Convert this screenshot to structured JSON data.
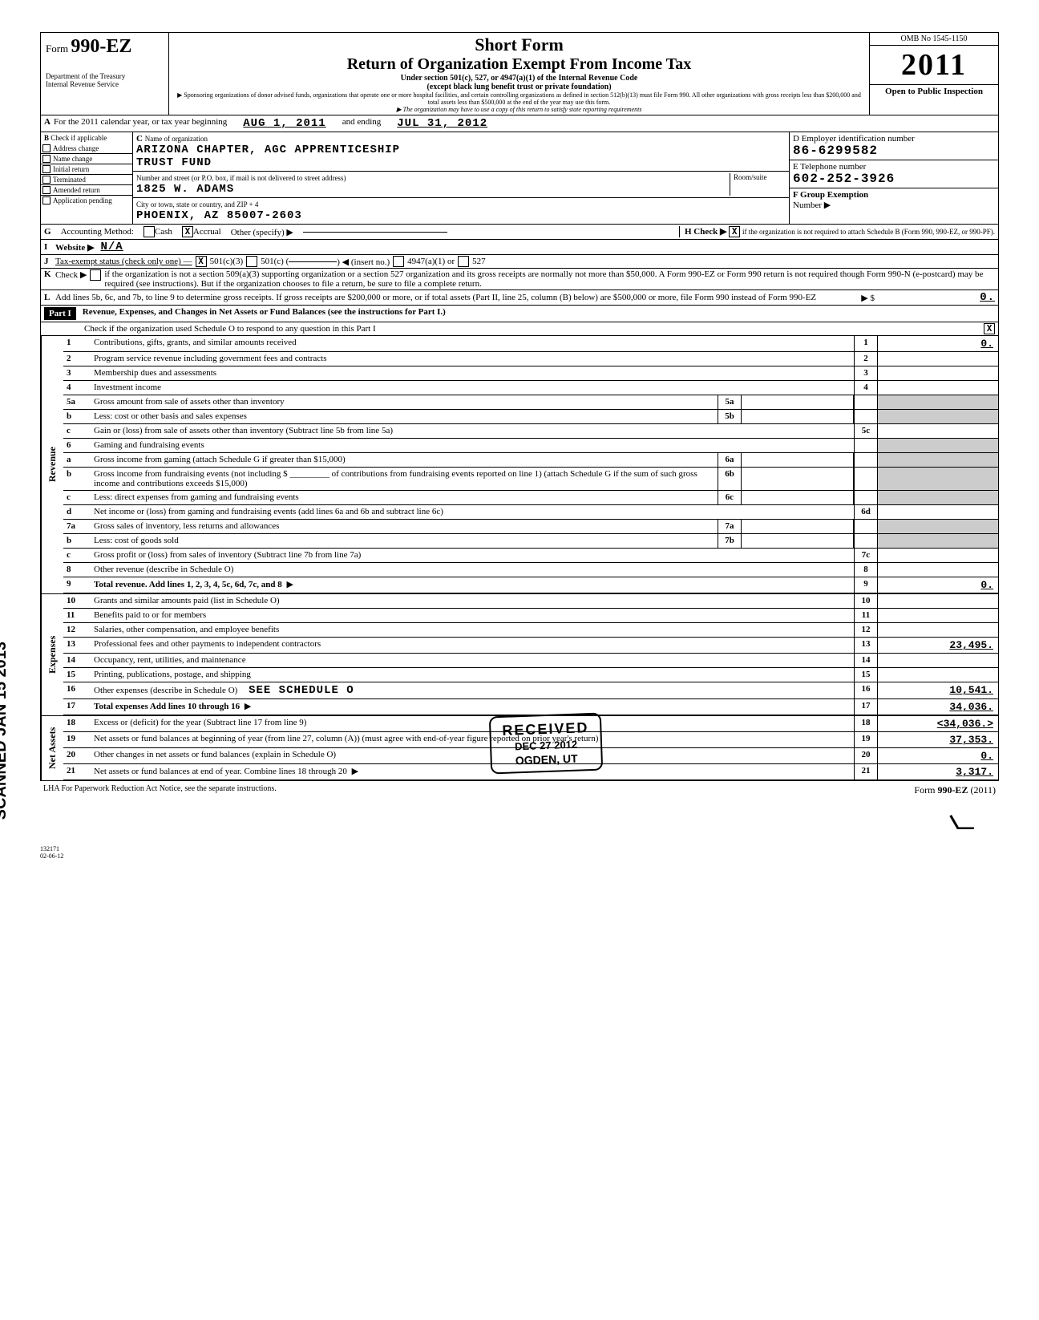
{
  "header": {
    "form_prefix": "Form",
    "form_no": "990-EZ",
    "dept1": "Department of the Treasury",
    "dept2": "Internal Revenue Service",
    "short": "Short Form",
    "title": "Return of Organization Exempt From Income Tax",
    "sub1": "Under section 501(c), 527, or 4947(a)(1) of the Internal Revenue Code",
    "sub2": "(except black lung benefit trust or private foundation)",
    "sub3": "▶ Sponsoring organizations of donor advised funds, organizations that operate one or more hospital facilities, and certain controlling organizations as defined in section 512(b)(13) must file Form 990. All other organizations with gross receipts less than $200,000 and total assets less than $500,000 at the end of the year may use this form.",
    "sub4": "▶ The organization may have to use a copy of this return to satisfy state reporting requirements",
    "omb": "OMB No  1545-1150",
    "year": "2011",
    "open": "Open to Public Inspection"
  },
  "rowA": {
    "label": "A",
    "text": "For the 2011 calendar year, or tax year beginning",
    "begin": "AUG 1, 2011",
    "and": "and ending",
    "end": "JUL 31, 2012"
  },
  "sectionB": {
    "b_label": "B",
    "b_text": "Check if applicable",
    "checks": [
      "Address change",
      "Name change",
      "Initial return",
      "Terminated",
      "Amended return",
      "Application pending"
    ],
    "c_label": "C",
    "c_text": "Name of organization",
    "org1": "ARIZONA CHAPTER, AGC APPRENTICESHIP",
    "org2": "TRUST FUND",
    "addr_hint": "Number and street (or P.O. box, if mail is not delivered to street address)",
    "room": "Room/suite",
    "addr": "1825 W. ADAMS",
    "city_hint": "City or town, state or country, and ZIP + 4",
    "city": "PHOENIX, AZ  85007-2603",
    "d_label": "D Employer identification number",
    "ein": "86-6299582",
    "e_label": "E  Telephone number",
    "phone": "602-252-3926",
    "f_label": "F  Group Exemption",
    "f_text": "Number ▶"
  },
  "rowG": {
    "g": "G",
    "acct": "Accounting Method:",
    "cash": "Cash",
    "accrual": "Accrual",
    "other": "Other (specify) ▶",
    "h": "H Check ▶",
    "h_text": "if the organization is not required to attach Schedule B (Form 990, 990-EZ, or 990-PF).",
    "h_x": "X"
  },
  "rowI": {
    "i": "I",
    "label": "Website ▶",
    "val": "N/A"
  },
  "rowJ": {
    "j": "J",
    "label": "Tax-exempt status (check only one) —",
    "x": "X",
    "c3": "501(c)(3)",
    "c": "501(c) (",
    "ins": ") ◀ (insert no.)",
    "a1": "4947(a)(1) or",
    "s527": "527"
  },
  "rowK": {
    "k": "K",
    "label": "Check ▶",
    "text": "if the organization is not a section 509(a)(3) supporting organization or a section 527 organization and its gross receipts are normally not more than $50,000. A Form 990-EZ or Form 990 return is not required though Form 990-N (e-postcard) may be required (see instructions). But if the organization chooses to file a return, be sure to file a complete return."
  },
  "rowL": {
    "l": "L",
    "text": "Add lines 5b, 6c, and 7b, to line 9 to determine gross receipts. If gross receipts are $200,000 or more, or if total assets (Part II, line 25, column (B) below) are $500,000 or more, file Form 990 instead of Form 990-EZ",
    "arrow": "▶  $",
    "val": "0."
  },
  "part1": {
    "hdr": "Part I",
    "title": "Revenue, Expenses, and Changes in Net Assets or Fund Balances (see the instructions for Part I.)",
    "check_line": "Check if the organization used Schedule O to respond to any question in this Part I",
    "check_x": "X"
  },
  "lines": [
    {
      "n": "1",
      "d": "Contributions, gifts, grants, and similar amounts received",
      "rn": "1",
      "rv": "0."
    },
    {
      "n": "2",
      "d": "Program service revenue including government fees and contracts",
      "rn": "2",
      "rv": ""
    },
    {
      "n": "3",
      "d": "Membership dues and assessments",
      "rn": "3",
      "rv": ""
    },
    {
      "n": "4",
      "d": "Investment income",
      "rn": "4",
      "rv": ""
    },
    {
      "n": "5a",
      "d": "Gross amount from sale of assets other than inventory",
      "mn": "5a",
      "mv": "",
      "shaded": true
    },
    {
      "n": "b",
      "d": "Less: cost or other basis and sales expenses",
      "mn": "5b",
      "mv": "",
      "shaded": true
    },
    {
      "n": "c",
      "d": "Gain or (loss) from sale of assets other than inventory (Subtract line 5b from line 5a)",
      "rn": "5c",
      "rv": ""
    },
    {
      "n": "6",
      "d": "Gaming and fundraising events",
      "shaded_full": true
    },
    {
      "n": "a",
      "d": "Gross income from gaming (attach Schedule G if greater than $15,000)",
      "mn": "6a",
      "mv": "",
      "shaded": true
    },
    {
      "n": "b",
      "d": "Gross income from fundraising events (not including $ _________ of contributions from fundraising events reported on line 1) (attach Schedule G if the sum of such gross income and contributions exceeds $15,000)",
      "mn": "6b",
      "mv": "",
      "shaded": true
    },
    {
      "n": "c",
      "d": "Less: direct expenses from gaming and fundraising events",
      "mn": "6c",
      "mv": "",
      "shaded": true
    },
    {
      "n": "d",
      "d": "Net income or (loss) from gaming and fundraising events (add lines 6a and 6b and subtract line 6c)",
      "rn": "6d",
      "rv": ""
    },
    {
      "n": "7a",
      "d": "Gross sales of inventory, less returns and allowances",
      "mn": "7a",
      "mv": "",
      "shaded": true
    },
    {
      "n": "b",
      "d": "Less: cost of goods sold",
      "mn": "7b",
      "mv": "",
      "shaded": true
    },
    {
      "n": "c",
      "d": "Gross profit or (loss) from sales of inventory (Subtract line 7b from line 7a)",
      "rn": "7c",
      "rv": ""
    },
    {
      "n": "8",
      "d": "Other revenue (describe in Schedule O)",
      "rn": "8",
      "rv": ""
    },
    {
      "n": "9",
      "d": "Total revenue. Add lines 1, 2, 3, 4, 5c, 6d, 7c, and 8",
      "rn": "9",
      "rv": "0.",
      "arrow": true,
      "bold": true
    }
  ],
  "exp_lines": [
    {
      "n": "10",
      "d": "Grants and similar amounts paid (list in Schedule O)",
      "rn": "10",
      "rv": ""
    },
    {
      "n": "11",
      "d": "Benefits paid to or for members",
      "rn": "11",
      "rv": ""
    },
    {
      "n": "12",
      "d": "Salaries, other compensation, and employee benefits",
      "rn": "12",
      "rv": ""
    },
    {
      "n": "13",
      "d": "Professional fees and other payments to independent contractors",
      "rn": "13",
      "rv": "23,495."
    },
    {
      "n": "14",
      "d": "Occupancy, rent, utilities, and maintenance",
      "rn": "14",
      "rv": ""
    },
    {
      "n": "15",
      "d": "Printing, publications, postage, and shipping",
      "rn": "15",
      "rv": ""
    },
    {
      "n": "16",
      "d": "Other expenses (describe in Schedule O)",
      "extra": "SEE SCHEDULE O",
      "rn": "16",
      "rv": "10,541."
    },
    {
      "n": "17",
      "d": "Total expenses  Add lines 10 through 16",
      "rn": "17",
      "rv": "34,036.",
      "arrow": true,
      "bold": true
    }
  ],
  "na_lines": [
    {
      "n": "18",
      "d": "Excess or (deficit) for the year (Subtract line 17 from line 9)",
      "rn": "18",
      "rv": "<34,036.>"
    },
    {
      "n": "19",
      "d": "Net assets or fund balances at beginning of year (from line 27, column (A)) (must agree with end-of-year figure reported on prior year's return)",
      "rn": "19",
      "rv": "37,353."
    },
    {
      "n": "20",
      "d": "Other changes in net assets or fund balances (explain in Schedule O)",
      "rn": "20",
      "rv": "0."
    },
    {
      "n": "21",
      "d": "Net assets or fund balances at end of year. Combine lines 18 through 20",
      "rn": "21",
      "rv": "3,317.",
      "arrow": true
    }
  ],
  "side_labels": {
    "rev": "Revenue",
    "exp": "Expenses",
    "na": "Net Assets"
  },
  "footer": {
    "lha": "LHA  For Paperwork Reduction Act Notice, see the separate instructions.",
    "form": "Form 990-EZ (2011)",
    "code": "132171\n02-06-12"
  },
  "stamp": {
    "s1": "RECEIVED",
    "s2": "DEC 27 2012",
    "s3": "OGDEN, UT"
  },
  "scanned": "SCANNED JAN 15 2013"
}
